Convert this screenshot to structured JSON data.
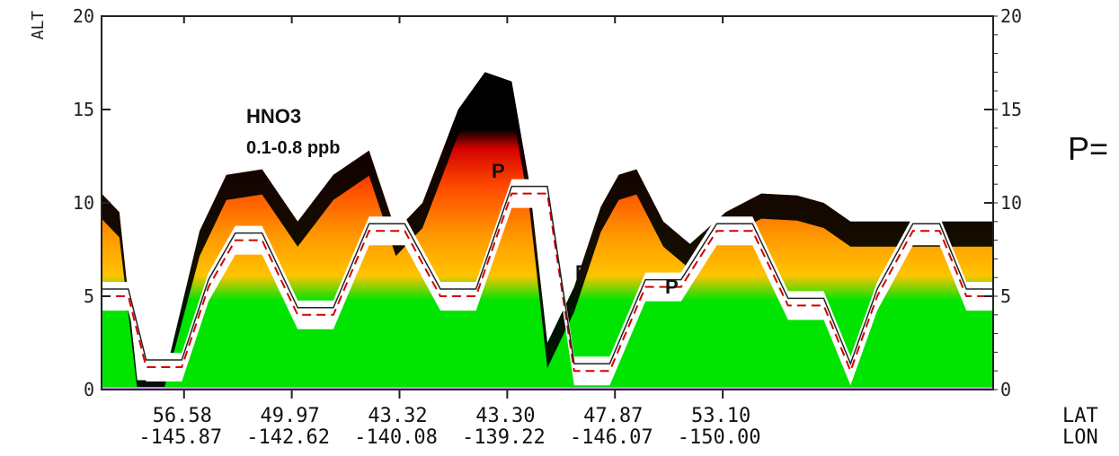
{
  "chart_data": {
    "type": "heatmap",
    "title": "",
    "ylabel": "ALT",
    "ylim": [
      0,
      20
    ],
    "y_ticks": [
      0,
      5,
      10,
      15,
      20
    ],
    "y_tick_labels_left": [
      "0",
      "5",
      "10",
      "15",
      "20"
    ],
    "y_tick_labels_right": [
      "0",
      "5",
      "10",
      "15",
      "20"
    ],
    "x_axis": {
      "rows": [
        {
          "name": "LAT",
          "values": [
            "56.58",
            "49.97",
            "43.32",
            "43.30",
            "47.87",
            "53.10"
          ]
        },
        {
          "name": "LON",
          "values": [
            "-145.87",
            "-142.62",
            "-140.08",
            "-139.22",
            "-146.07",
            "-150.00"
          ]
        }
      ]
    },
    "annotations": {
      "species": "HNO3",
      "range": "0.1-0.8 ppb",
      "markers": [
        "P",
        "P",
        "P"
      ],
      "cut_label": "P="
    },
    "colorscale": [
      "#000000",
      "#7a0000",
      "#d40000",
      "#ff6a00",
      "#ffb300",
      "#00e400",
      "#3ad0ff",
      "#7b4dff",
      "#ffffff"
    ],
    "data_top_profile": {
      "description_units": "km",
      "x_fraction": [
        0.0,
        0.02,
        0.04,
        0.07,
        0.11,
        0.14,
        0.18,
        0.22,
        0.26,
        0.3,
        0.33,
        0.36,
        0.4,
        0.43,
        0.46,
        0.48,
        0.5,
        0.53,
        0.56,
        0.58,
        0.6,
        0.63,
        0.66,
        0.7,
        0.74,
        0.78,
        0.81,
        0.84,
        0.87,
        0.91,
        0.95,
        1.0
      ],
      "alt_km": [
        10.5,
        9.5,
        0.5,
        0.5,
        8.5,
        11.5,
        11.8,
        9.0,
        11.5,
        12.8,
        8.5,
        10.0,
        15.0,
        17.0,
        16.5,
        11.0,
        2.5,
        5.5,
        9.8,
        11.5,
        11.8,
        9.0,
        7.8,
        9.5,
        10.5,
        10.4,
        10.0,
        9.0,
        9.0,
        9.0,
        9.0,
        9.0
      ]
    },
    "flight_track": {
      "x_fraction": [
        0.0,
        0.03,
        0.05,
        0.09,
        0.12,
        0.15,
        0.18,
        0.22,
        0.26,
        0.3,
        0.34,
        0.38,
        0.42,
        0.46,
        0.5,
        0.53,
        0.57,
        0.61,
        0.65,
        0.69,
        0.73,
        0.77,
        0.81,
        0.84,
        0.87,
        0.91,
        0.94,
        0.97,
        1.0
      ],
      "alt_km": [
        5.0,
        5.0,
        1.2,
        1.2,
        5.5,
        8.0,
        8.0,
        4.0,
        4.0,
        8.5,
        8.5,
        5.0,
        5.0,
        10.5,
        10.5,
        1.0,
        1.0,
        5.5,
        5.5,
        8.5,
        8.5,
        4.5,
        4.5,
        1.0,
        5.0,
        8.5,
        8.5,
        5.0,
        5.0
      ]
    }
  }
}
